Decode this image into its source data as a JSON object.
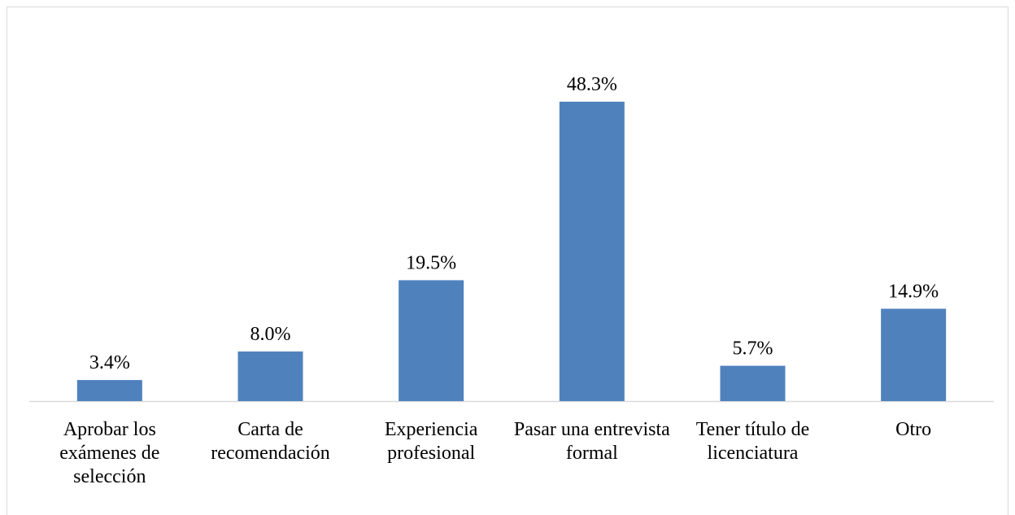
{
  "chart_data": {
    "type": "bar",
    "categories": [
      "Aprobar los exámenes de selección",
      "Carta de recomendación",
      "Experiencia profesional",
      "Pasar una entrevista formal",
      "Tener título de licenciatura",
      "Otro"
    ],
    "values": [
      3.4,
      8.0,
      19.5,
      48.3,
      5.7,
      14.9
    ],
    "value_labels": [
      "3.4%",
      "8.0%",
      "19.5%",
      "48.3%",
      "5.7%",
      "14.9%"
    ],
    "color": "#4f81bd"
  }
}
